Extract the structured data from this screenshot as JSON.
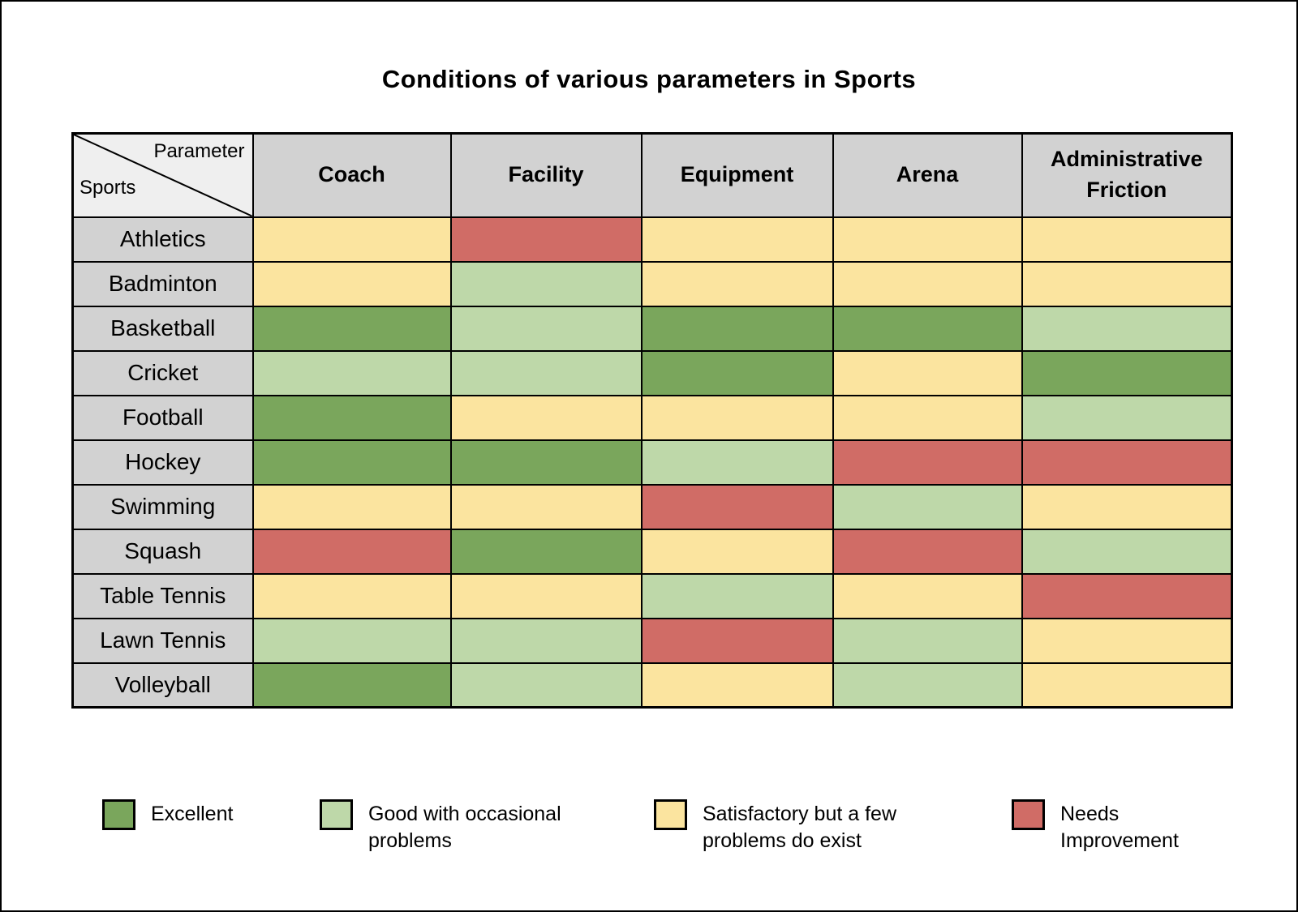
{
  "chart_data": {
    "type": "heatmap",
    "title": "Conditions of various parameters in Sports",
    "corner": {
      "top_right": "Parameter",
      "bottom_left": "Sports"
    },
    "columns": [
      "Coach",
      "Facility",
      "Equipment",
      "Arena",
      "Administrative Friction"
    ],
    "rows": [
      "Athletics",
      "Badminton",
      "Basketball",
      "Cricket",
      "Football",
      "Hockey",
      "Swimming",
      "Squash",
      "Table Tennis",
      "Lawn Tennis",
      "Volleyball"
    ],
    "values": [
      [
        "satisfactory",
        "needs_improvement",
        "satisfactory",
        "satisfactory",
        "satisfactory"
      ],
      [
        "satisfactory",
        "good",
        "satisfactory",
        "satisfactory",
        "satisfactory"
      ],
      [
        "excellent",
        "good",
        "excellent",
        "excellent",
        "good"
      ],
      [
        "good",
        "good",
        "excellent",
        "satisfactory",
        "excellent"
      ],
      [
        "excellent",
        "satisfactory",
        "satisfactory",
        "satisfactory",
        "good"
      ],
      [
        "excellent",
        "excellent",
        "good",
        "needs_improvement",
        "needs_improvement"
      ],
      [
        "satisfactory",
        "satisfactory",
        "needs_improvement",
        "good",
        "satisfactory"
      ],
      [
        "needs_improvement",
        "excellent",
        "satisfactory",
        "needs_improvement",
        "good"
      ],
      [
        "satisfactory",
        "satisfactory",
        "good",
        "satisfactory",
        "needs_improvement"
      ],
      [
        "good",
        "good",
        "needs_improvement",
        "good",
        "satisfactory"
      ],
      [
        "excellent",
        "good",
        "satisfactory",
        "good",
        "satisfactory"
      ]
    ],
    "legend": [
      {
        "key": "excellent",
        "label": "Excellent"
      },
      {
        "key": "good",
        "label": "Good with occasional problems"
      },
      {
        "key": "satisfactory",
        "label": "Satisfactory but a few problems do exist"
      },
      {
        "key": "needs_improvement",
        "label": "Needs Improvement"
      }
    ]
  },
  "colors": {
    "excellent": "#7aa65c",
    "good": "#bed8a9",
    "satisfactory": "#fbe49f",
    "needs_improvement": "#d06c66",
    "header_bg": "#d2d2d2",
    "corner_bg": "#efefef",
    "border": "#000000"
  }
}
